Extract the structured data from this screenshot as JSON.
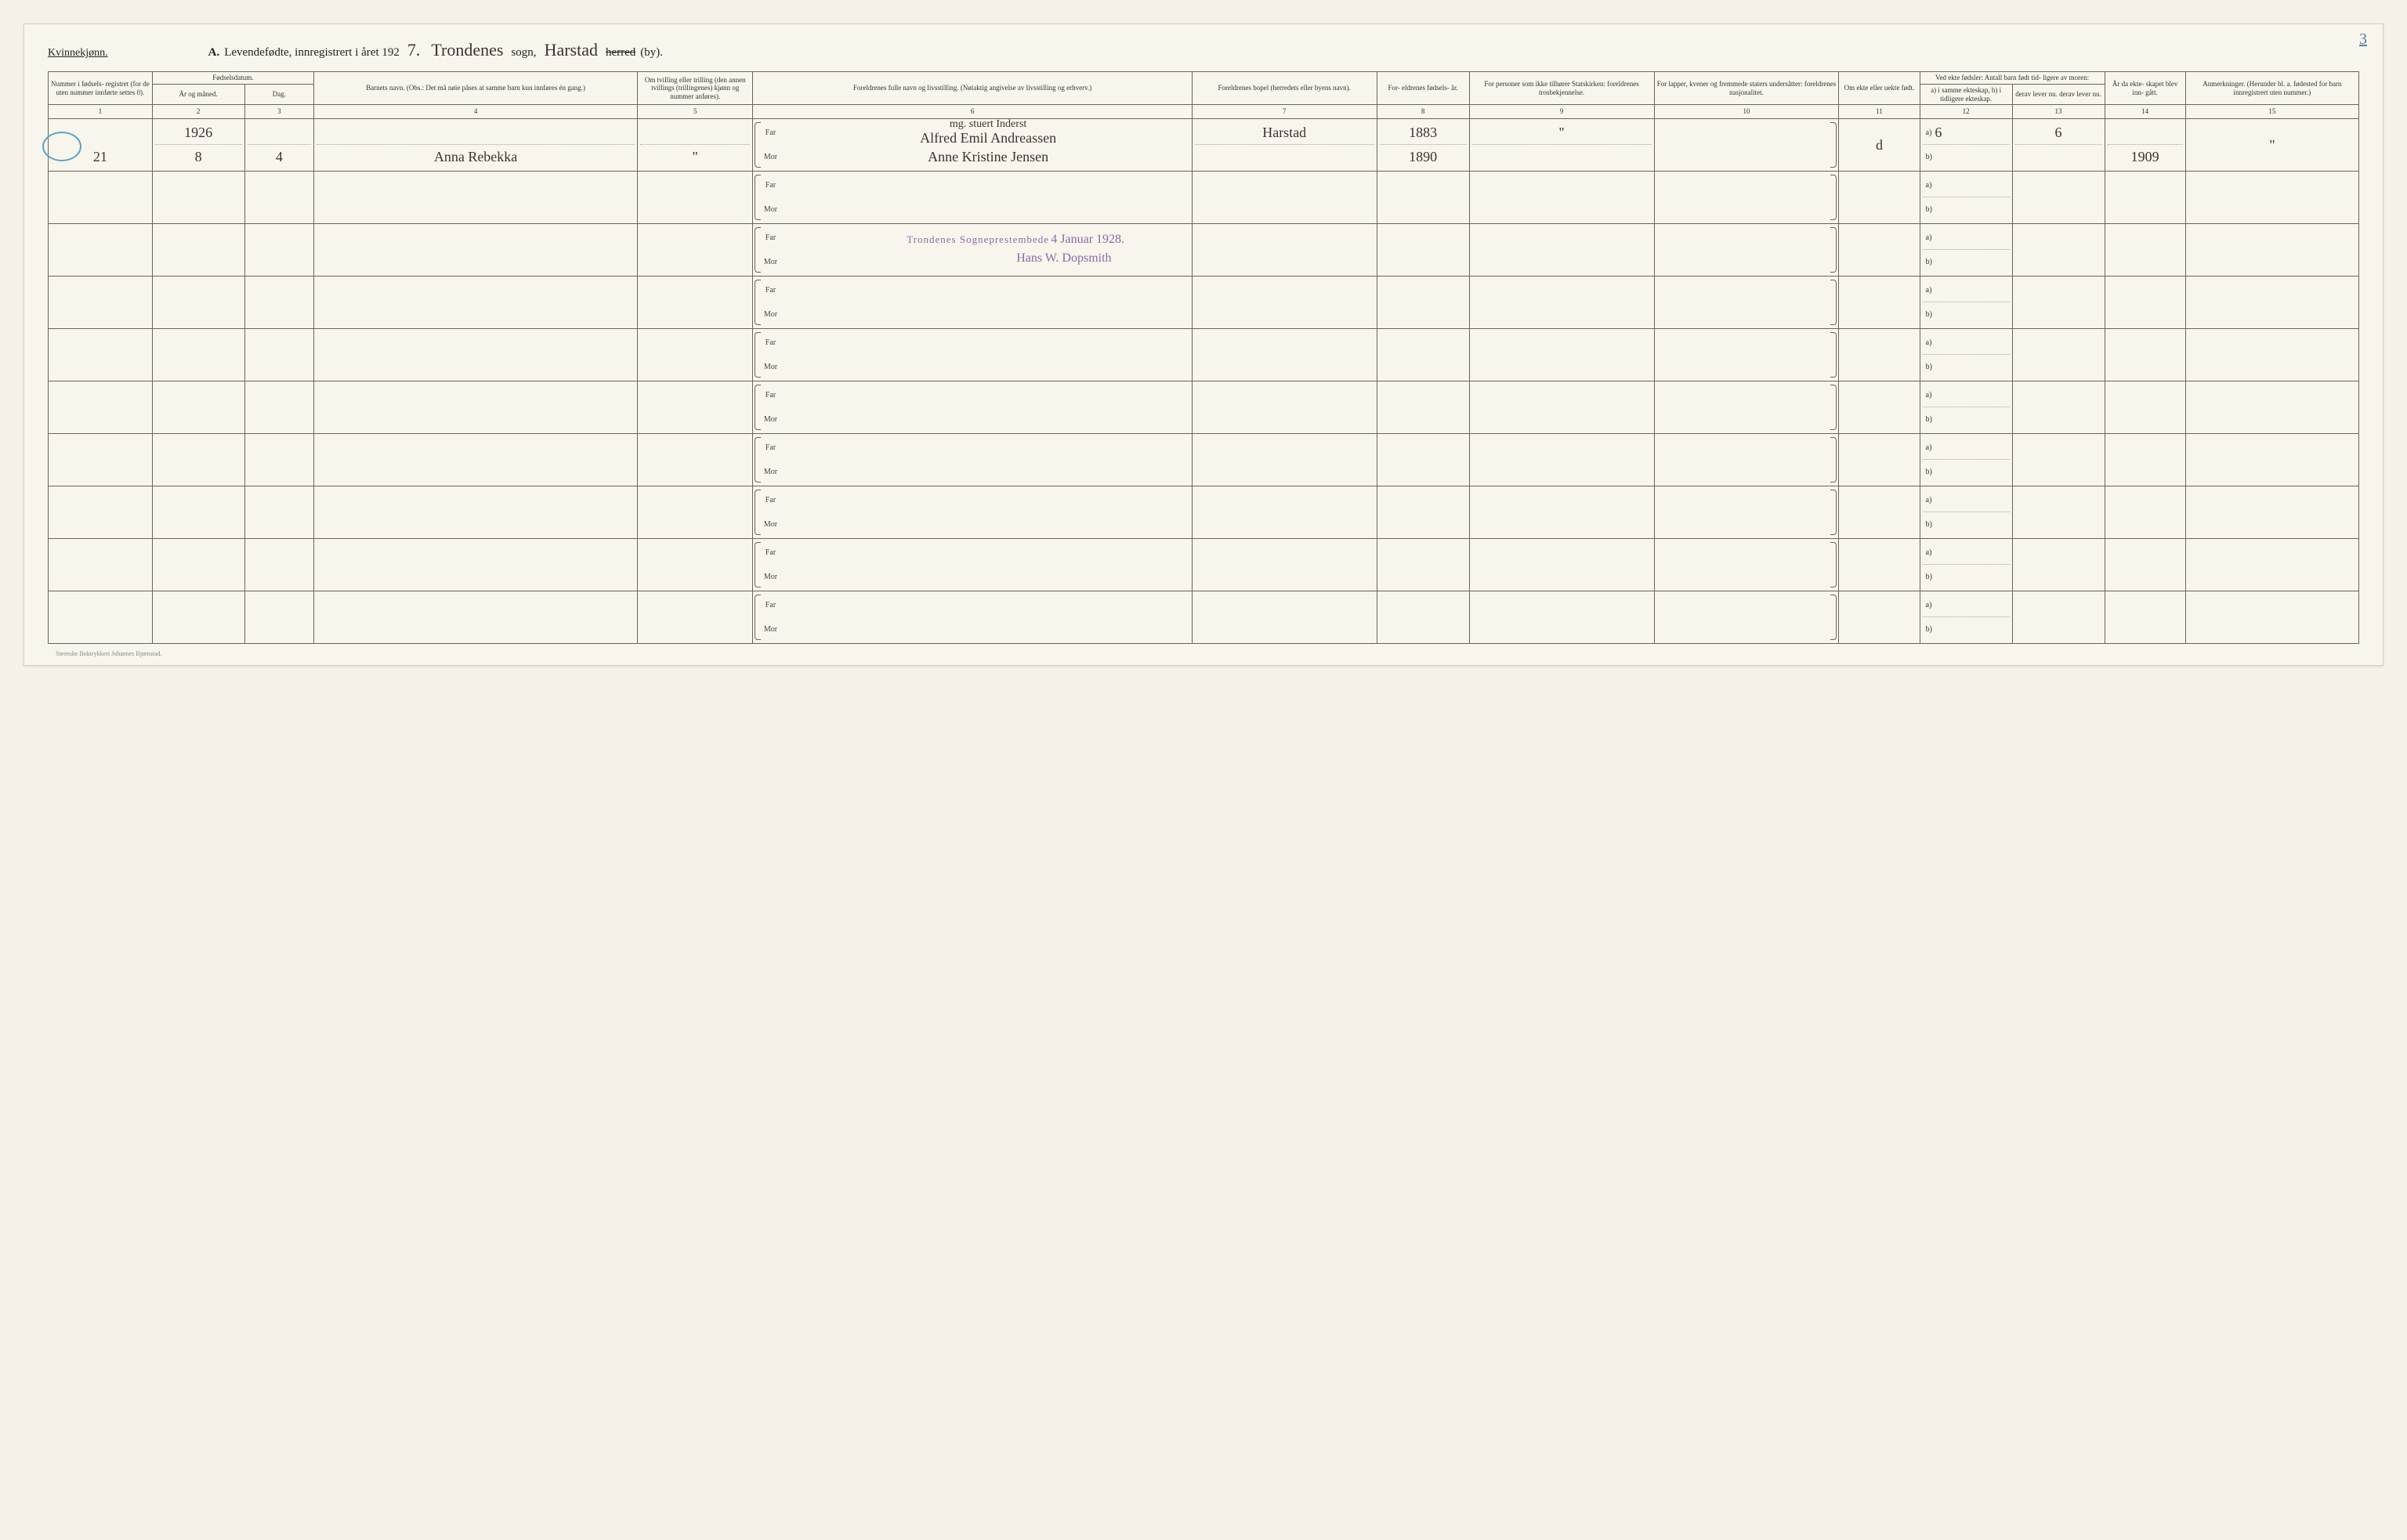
{
  "page_number_top": "3",
  "gender_label": "Kvinnekjønn.",
  "title": {
    "prefix": "A.",
    "main": "Levendefødte, innregistrert i året 192",
    "year_suffix": "7.",
    "sogn_value": "Trondenes",
    "sogn_label": "sogn,",
    "herred_value": "Harstad",
    "herred_strike": "herred",
    "herred_suffix": "(by)."
  },
  "columns": {
    "c1": "Nummer i fødsels- registret (for de uten nummer innførte settes 0).",
    "c2_group": "Fødselsdatum.",
    "c2": "År og måned.",
    "c3": "Dag.",
    "c4": "Barnets navn.\n(Obs.: Det må nøie påses at samme barn kun innføres én gang.)",
    "c5": "Om tvilling eller trilling (den annen tvillings (trillingenes) kjønn og nummer anføres).",
    "c6": "Foreldrenes fulle navn og livsstilling.\n(Nøiaktig angivelse av livsstilling og erhverv.)",
    "c7": "Foreldrenes bopel\n(herredets eller byens navn).",
    "c8": "For- eldrenes fødsels- år.",
    "c9": "For personer som ikke tilhører Statskirken: foreldrenes trosbekjennelse.",
    "c10": "For lapper, kvener og fremmede staters undersåtter: foreldrenes nasjonalitet.",
    "c11": "Om ekte eller uekte født.",
    "c12_group": "Ved ekte fødsler: Antall barn født tid- ligere av moren:",
    "c12": "a) i samme ekteskap,\nb) i tidligere ekteskap.",
    "c13": "derav lever nu.\nderav lever nu.",
    "c14": "År da ekte- skapet blev inn- gått.",
    "c15": "Anmerkninger.\n(Herunder bl. a. fødested for barn innregistrert uten nummer.)"
  },
  "col_numbers": [
    "1",
    "2",
    "3",
    "4",
    "5",
    "6",
    "7",
    "8",
    "9",
    "10",
    "11",
    "12",
    "13",
    "14",
    "15"
  ],
  "parent_labels": {
    "far": "Far",
    "mor": "Mor"
  },
  "ab_labels": {
    "a": "a)",
    "b": "b)"
  },
  "rows": [
    {
      "num": "21",
      "year_month_top": "1926",
      "year_month_bottom": "8",
      "day": "4",
      "child_name": "Anna Rebekka",
      "twin": "\"",
      "far_occupation": "mg. stuert Inderst",
      "far_name": "Alfred Emil Andreassen",
      "mor_name": "Anne Kristine Jensen",
      "bopel": "Harstad",
      "far_year": "1883",
      "mor_year": "1890",
      "col9": "\"",
      "ekte": "d",
      "c12a": "6",
      "c13a": "6",
      "c14": "1909",
      "c15": "\""
    }
  ],
  "stamp": {
    "line1": "Trondenes Sogneprestembede",
    "date": "4 Januar 1928.",
    "signature": "Hans W. Dopsmith"
  },
  "footer": "Steenske Boktrykkeri Johannes Bjørnstad.",
  "colors": {
    "paper": "#f8f5ec",
    "border": "#6a6558",
    "ink": "#3a3530",
    "blue_pencil": "#5aa0c8",
    "purple_stamp": "#8a6aa8"
  },
  "col_widths_pct": [
    4.5,
    4,
    3,
    14,
    5,
    19,
    8,
    4,
    8,
    8,
    3.5,
    4,
    4,
    3.5,
    7.5
  ]
}
